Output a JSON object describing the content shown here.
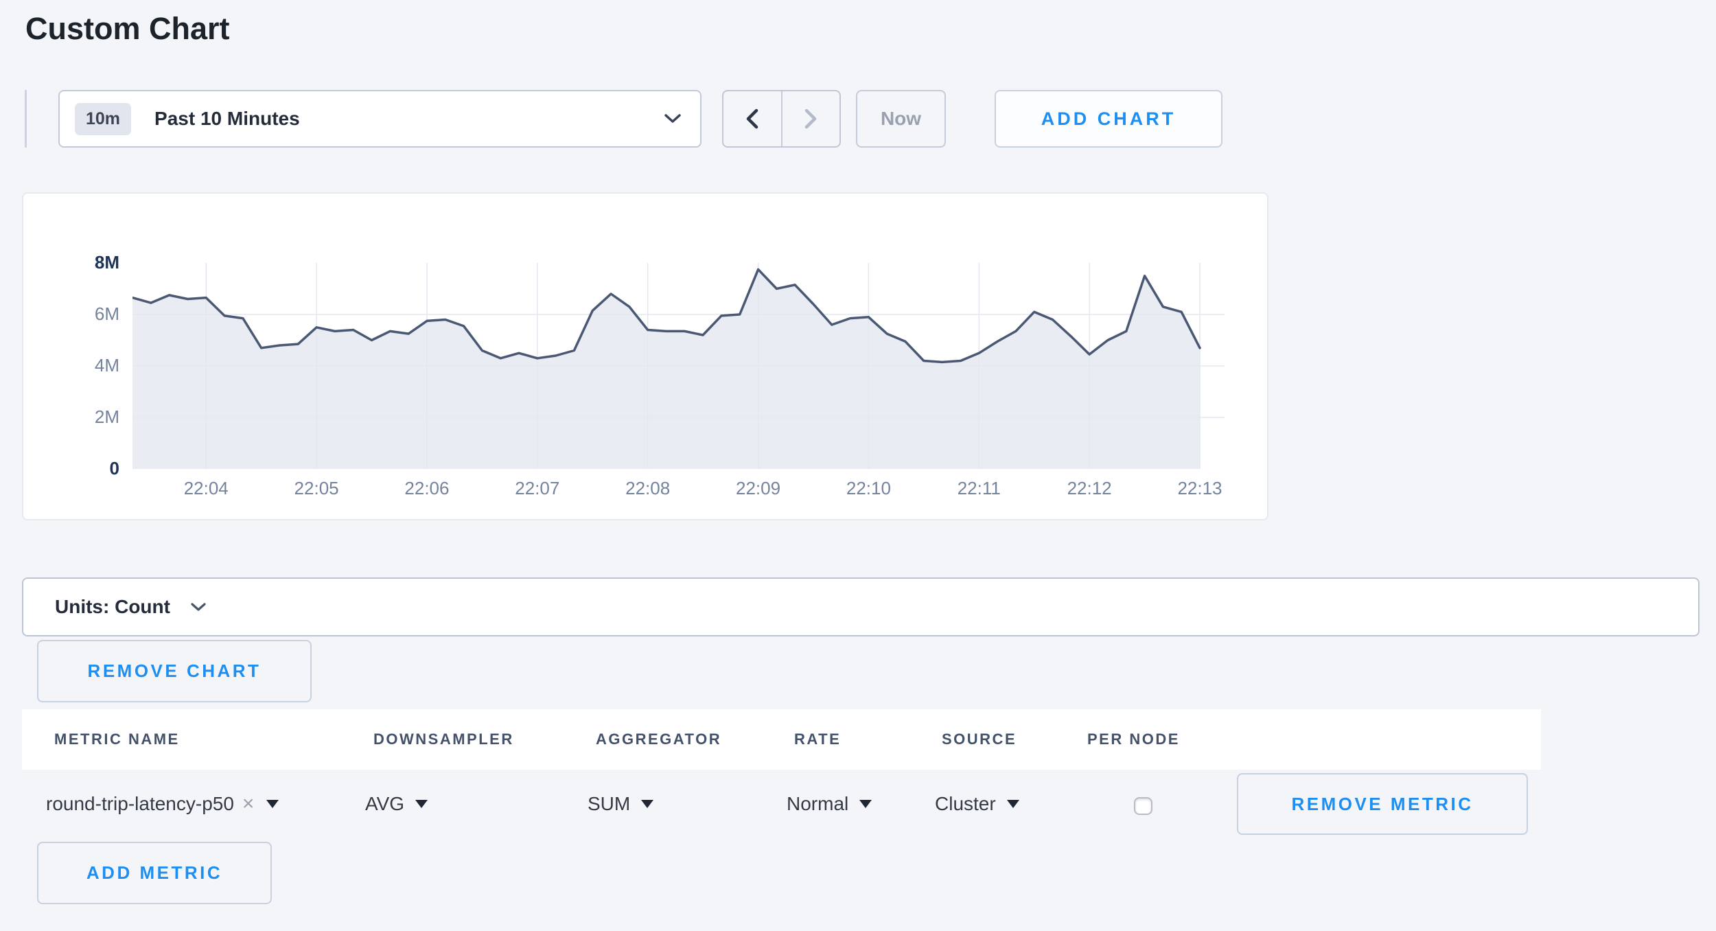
{
  "page": {
    "title": "Custom Chart",
    "background": "#f4f5f9",
    "accent_blue": "#1e8ff2"
  },
  "toolbar": {
    "time_badge": "10m",
    "time_label": "Past 10 Minutes",
    "prev_enabled": true,
    "next_enabled": false,
    "now_label": "Now",
    "add_chart_label": "ADD CHART"
  },
  "icons": {
    "time_dropdown": "chevron-down",
    "prev": "chevron-left",
    "next": "chevron-right",
    "units": "chevron-down",
    "metric_remove": "x",
    "select_caret": "triangle-down"
  },
  "chart_data": {
    "type": "area",
    "title": "",
    "xlabel": "",
    "ylabel": "count",
    "y_unit": "M = millions",
    "ylim_millions": [
      0,
      8
    ],
    "y_tick_labels": [
      "0",
      "2M",
      "4M",
      "6M",
      "8M"
    ],
    "y_tick_values_millions": [
      0,
      2,
      4,
      6,
      8
    ],
    "y_gridlines_millions": [
      2,
      4,
      6
    ],
    "x_start": "22:03:20",
    "x_end": "22:13:00",
    "x_interval_seconds": 10,
    "x_tick_labels": [
      "22:04",
      "22:05",
      "22:06",
      "22:07",
      "22:08",
      "22:09",
      "22:10",
      "22:11",
      "22:12",
      "22:13"
    ],
    "grid": true,
    "legend": "none",
    "line_color": "#4a5873",
    "fill_color": "rgba(230,233,241,0.85)",
    "series": [
      {
        "name": "round-trip-latency-p50",
        "values_millions": [
          6.65,
          6.45,
          6.75,
          6.6,
          6.65,
          5.95,
          5.85,
          4.7,
          4.8,
          4.85,
          5.5,
          5.35,
          5.4,
          5.0,
          5.35,
          5.25,
          5.75,
          5.8,
          5.55,
          4.6,
          4.3,
          4.5,
          4.3,
          4.4,
          4.6,
          6.15,
          6.8,
          6.3,
          5.4,
          5.35,
          5.35,
          5.2,
          5.95,
          6.0,
          7.75,
          7.0,
          7.15,
          6.4,
          5.6,
          5.85,
          5.9,
          5.25,
          4.95,
          4.2,
          4.15,
          4.2,
          4.5,
          4.95,
          5.35,
          6.1,
          5.8,
          5.15,
          4.45,
          5.0,
          5.35,
          7.5,
          6.3,
          6.1,
          4.7
        ]
      }
    ]
  },
  "units_bar": {
    "label": "Units: Count"
  },
  "remove_chart_label": "REMOVE CHART",
  "metrics_table": {
    "columns": [
      "METRIC NAME",
      "DOWNSAMPLER",
      "AGGREGATOR",
      "RATE",
      "SOURCE",
      "PER NODE"
    ],
    "rows": [
      {
        "metric_name": "round-trip-latency-p50",
        "downsampler": "AVG",
        "aggregator": "SUM",
        "rate": "Normal",
        "source": "Cluster",
        "per_node_checked": false,
        "remove_metric_label": "REMOVE METRIC"
      }
    ],
    "add_metric_label": "ADD METRIC"
  }
}
